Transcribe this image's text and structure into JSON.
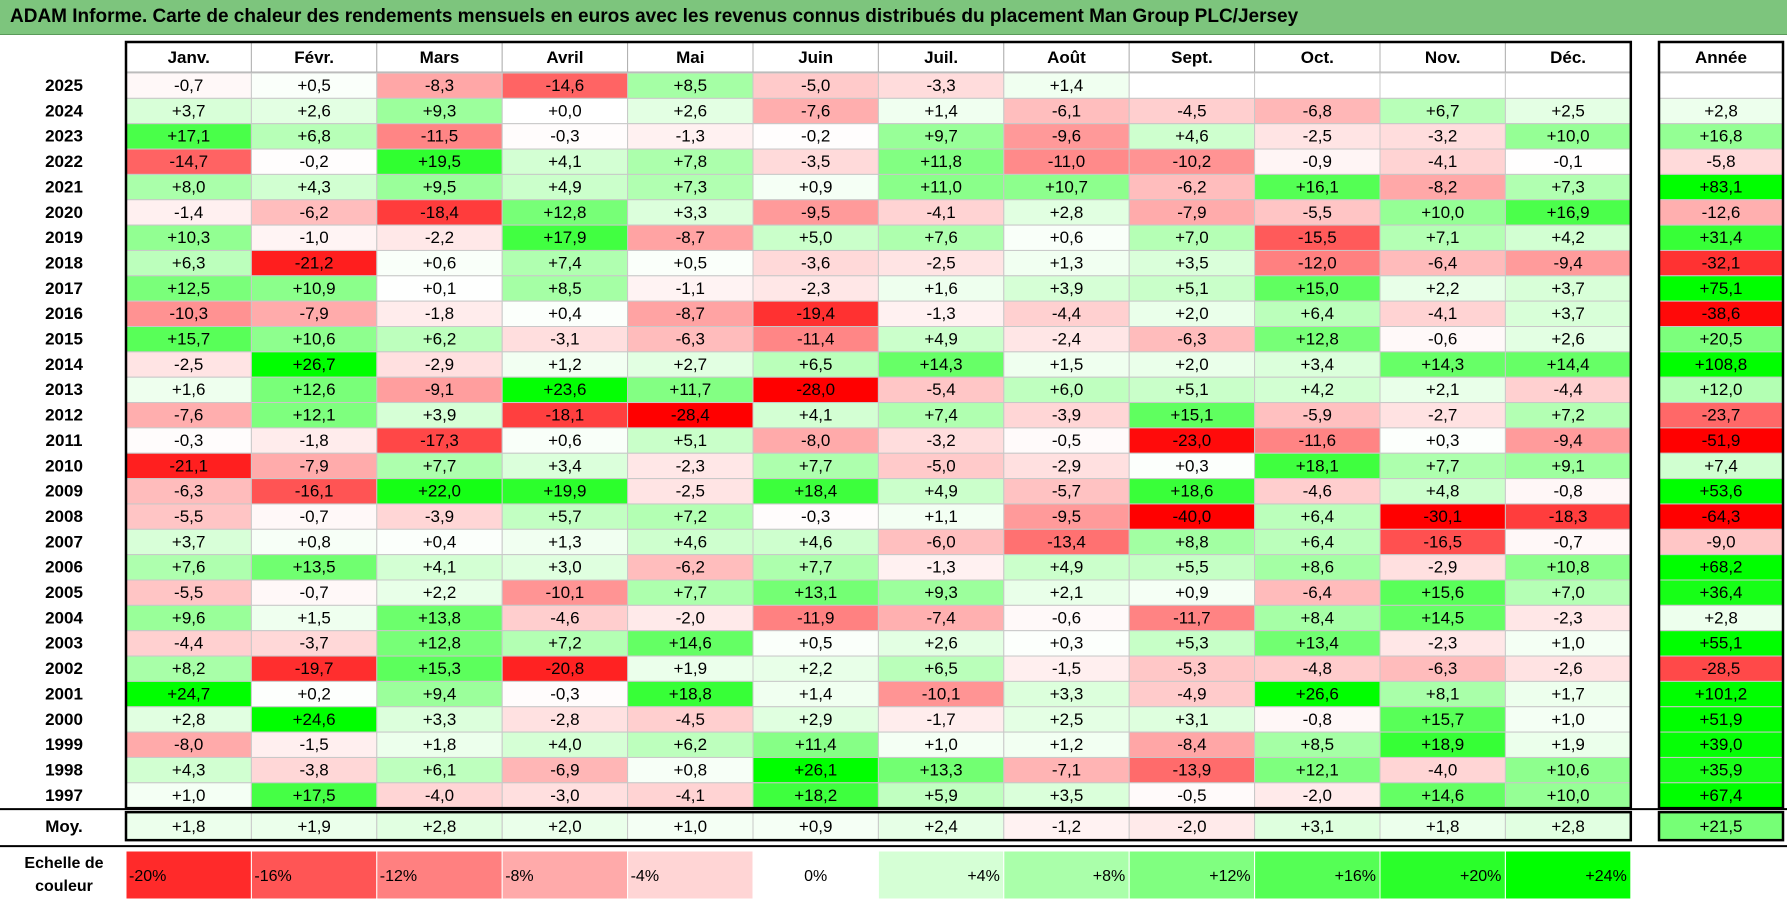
{
  "title": "ADAM Informe. Carte de chaleur des rendements mensuels en euros avec les revenus connus distribués du placement Man Group PLC/Jersey",
  "chart_data": {
    "type": "heatmap",
    "months": [
      "Janv.",
      "Févr.",
      "Mars",
      "Avril",
      "Mai",
      "Juin",
      "Juil.",
      "Août",
      "Sept.",
      "Oct.",
      "Nov.",
      "Déc."
    ],
    "year_header": "Année",
    "years": [
      "2025",
      "2024",
      "2023",
      "2022",
      "2021",
      "2020",
      "2019",
      "2018",
      "2017",
      "2016",
      "2015",
      "2014",
      "2013",
      "2012",
      "2011",
      "2010",
      "2009",
      "2008",
      "2007",
      "2006",
      "2005",
      "2004",
      "2003",
      "2002",
      "2001",
      "2000",
      "1999",
      "1998",
      "1997"
    ],
    "values": [
      [
        "-0,7",
        "+0,5",
        "-8,3",
        "-14,6",
        "+8,5",
        "-5,0",
        "-3,3",
        "+1,4",
        "",
        "",
        "",
        ""
      ],
      [
        "+3,7",
        "+2,6",
        "+9,3",
        "+0,0",
        "+2,6",
        "-7,6",
        "+1,4",
        "-6,1",
        "-4,5",
        "-6,8",
        "+6,7",
        "+2,5"
      ],
      [
        "+17,1",
        "+6,8",
        "-11,5",
        "-0,3",
        "-1,3",
        "-0,2",
        "+9,7",
        "-9,6",
        "+4,6",
        "-2,5",
        "-3,2",
        "+10,0"
      ],
      [
        "-14,7",
        "-0,2",
        "+19,5",
        "+4,1",
        "+7,8",
        "-3,5",
        "+11,8",
        "-11,0",
        "-10,2",
        "-0,9",
        "-4,1",
        "-0,1"
      ],
      [
        "+8,0",
        "+4,3",
        "+9,5",
        "+4,9",
        "+7,3",
        "+0,9",
        "+11,0",
        "+10,7",
        "-6,2",
        "+16,1",
        "-8,2",
        "+7,3"
      ],
      [
        "-1,4",
        "-6,2",
        "-18,4",
        "+12,8",
        "+3,3",
        "-9,5",
        "-4,1",
        "+2,8",
        "-7,9",
        "-5,5",
        "+10,0",
        "+16,9"
      ],
      [
        "+10,3",
        "-1,0",
        "-2,2",
        "+17,9",
        "-8,7",
        "+5,0",
        "+7,6",
        "+0,6",
        "+7,0",
        "-15,5",
        "+7,1",
        "+4,2"
      ],
      [
        "+6,3",
        "-21,2",
        "+0,6",
        "+7,4",
        "+0,5",
        "-3,6",
        "-2,5",
        "+1,3",
        "+3,5",
        "-12,0",
        "-6,4",
        "-9,4"
      ],
      [
        "+12,5",
        "+10,9",
        "+0,1",
        "+8,5",
        "-1,1",
        "-2,3",
        "+1,6",
        "+3,9",
        "+5,1",
        "+15,0",
        "+2,2",
        "+3,7"
      ],
      [
        "-10,3",
        "-7,9",
        "-1,8",
        "+0,4",
        "-8,7",
        "-19,4",
        "-1,3",
        "-4,4",
        "+2,0",
        "+6,4",
        "-4,1",
        "+3,7"
      ],
      [
        "+15,7",
        "+10,6",
        "+6,2",
        "-3,1",
        "-6,3",
        "-11,4",
        "+4,9",
        "-2,4",
        "-6,3",
        "+12,8",
        "-0,6",
        "+2,6"
      ],
      [
        "-2,5",
        "+26,7",
        "-2,9",
        "+1,2",
        "+2,7",
        "+6,5",
        "+14,3",
        "+1,5",
        "+2,0",
        "+3,4",
        "+14,3",
        "+14,4"
      ],
      [
        "+1,6",
        "+12,6",
        "-9,1",
        "+23,6",
        "+11,7",
        "-28,0",
        "-5,4",
        "+6,0",
        "+5,1",
        "+4,2",
        "+2,1",
        "-4,4"
      ],
      [
        "-7,6",
        "+12,1",
        "+3,9",
        "-18,1",
        "-28,4",
        "+4,1",
        "+7,4",
        "-3,9",
        "+15,1",
        "-5,9",
        "-2,7",
        "+7,2"
      ],
      [
        "-0,3",
        "-1,8",
        "-17,3",
        "+0,6",
        "+5,1",
        "-8,0",
        "-3,2",
        "-0,5",
        "-23,0",
        "-11,6",
        "+0,3",
        "-9,4"
      ],
      [
        "-21,1",
        "-7,9",
        "+7,7",
        "+3,4",
        "-2,3",
        "+7,7",
        "-5,0",
        "-2,9",
        "+0,3",
        "+18,1",
        "+7,7",
        "+9,1"
      ],
      [
        "-6,3",
        "-16,1",
        "+22,0",
        "+19,9",
        "-2,5",
        "+18,4",
        "+4,9",
        "-5,7",
        "+18,6",
        "-4,6",
        "+4,8",
        "-0,8"
      ],
      [
        "-5,5",
        "-0,7",
        "-3,9",
        "+5,7",
        "+7,2",
        "-0,3",
        "+1,1",
        "-9,5",
        "-40,0",
        "+6,4",
        "-30,1",
        "-18,3"
      ],
      [
        "+3,7",
        "+0,8",
        "+0,4",
        "+1,3",
        "+4,6",
        "+4,6",
        "-6,0",
        "-13,4",
        "+8,8",
        "+6,4",
        "-16,5",
        "-0,7"
      ],
      [
        "+7,6",
        "+13,5",
        "+4,1",
        "+3,0",
        "-6,2",
        "+7,7",
        "-1,3",
        "+4,9",
        "+5,5",
        "+8,6",
        "-2,9",
        "+10,8"
      ],
      [
        "-5,5",
        "-0,7",
        "+2,2",
        "-10,1",
        "+7,7",
        "+13,1",
        "+9,3",
        "+2,1",
        "+0,9",
        "-6,4",
        "+15,6",
        "+7,0"
      ],
      [
        "+9,6",
        "+1,5",
        "+13,8",
        "-4,6",
        "-2,0",
        "-11,9",
        "-7,4",
        "-0,6",
        "-11,7",
        "+8,4",
        "+14,5",
        "-2,3"
      ],
      [
        "-4,4",
        "-3,7",
        "+12,8",
        "+7,2",
        "+14,6",
        "+0,5",
        "+2,6",
        "+0,3",
        "+5,3",
        "+13,4",
        "-2,3",
        "+1,0"
      ],
      [
        "+8,2",
        "-19,7",
        "+15,3",
        "-20,8",
        "+1,9",
        "+2,2",
        "+6,5",
        "-1,5",
        "-5,3",
        "-4,8",
        "-6,3",
        "-2,6"
      ],
      [
        "+24,7",
        "+0,2",
        "+9,4",
        "-0,3",
        "+18,8",
        "+1,4",
        "-10,1",
        "+3,3",
        "-4,9",
        "+26,6",
        "+8,1",
        "+1,7"
      ],
      [
        "+2,8",
        "+24,6",
        "+3,3",
        "-2,8",
        "-4,5",
        "+2,9",
        "-1,7",
        "+2,5",
        "+3,1",
        "-0,8",
        "+15,7",
        "+1,0"
      ],
      [
        "-8,0",
        "-1,5",
        "+1,8",
        "+4,0",
        "+6,2",
        "+11,4",
        "+1,0",
        "+1,2",
        "-8,4",
        "+8,5",
        "+18,9",
        "+1,9"
      ],
      [
        "+4,3",
        "-3,8",
        "+6,1",
        "-6,9",
        "+0,8",
        "+26,1",
        "+13,3",
        "-7,1",
        "-13,9",
        "+12,1",
        "-4,0",
        "+10,6"
      ],
      [
        "+1,0",
        "+17,5",
        "-4,0",
        "-3,0",
        "-4,1",
        "+18,2",
        "+5,9",
        "+3,5",
        "-0,5",
        "-2,0",
        "+14,6",
        "+10,0"
      ]
    ],
    "year_totals": [
      "",
      "+2,8",
      "+16,8",
      "-5,8",
      "+83,1",
      "-12,6",
      "+31,4",
      "-32,1",
      "+75,1",
      "-38,6",
      "+20,5",
      "+108,8",
      "+12,0",
      "-23,7",
      "-51,9",
      "+7,4",
      "+53,6",
      "-64,3",
      "-9,0",
      "+68,2",
      "+36,4",
      "+2,8",
      "+55,1",
      "-28,5",
      "+101,2",
      "+51,9",
      "+39,0",
      "+35,9",
      "+67,4"
    ],
    "average_label": "Moy.",
    "averages": [
      "+1,8",
      "+1,9",
      "+2,8",
      "+2,0",
      "+1,0",
      "+0,9",
      "+2,4",
      "-1,2",
      "-2,0",
      "+3,1",
      "+1,8",
      "+2,8"
    ],
    "average_total": "+21,5",
    "scale_label_line1": "Echelle de",
    "scale_label_line2": "couleur",
    "scale": [
      "-20%",
      "-16%",
      "-12%",
      "-8%",
      "-4%",
      "0%",
      "+4%",
      "+8%",
      "+12%",
      "+16%",
      "+20%",
      "+24%"
    ],
    "scale_values": [
      -20,
      -16,
      -12,
      -8,
      -4,
      0,
      4,
      8,
      12,
      16,
      20,
      24
    ],
    "colors": {
      "negative_max": "#ff0000",
      "neutral": "#ffffff",
      "positive_max": "#00ff00",
      "title_bar": "#7dc57d"
    }
  }
}
